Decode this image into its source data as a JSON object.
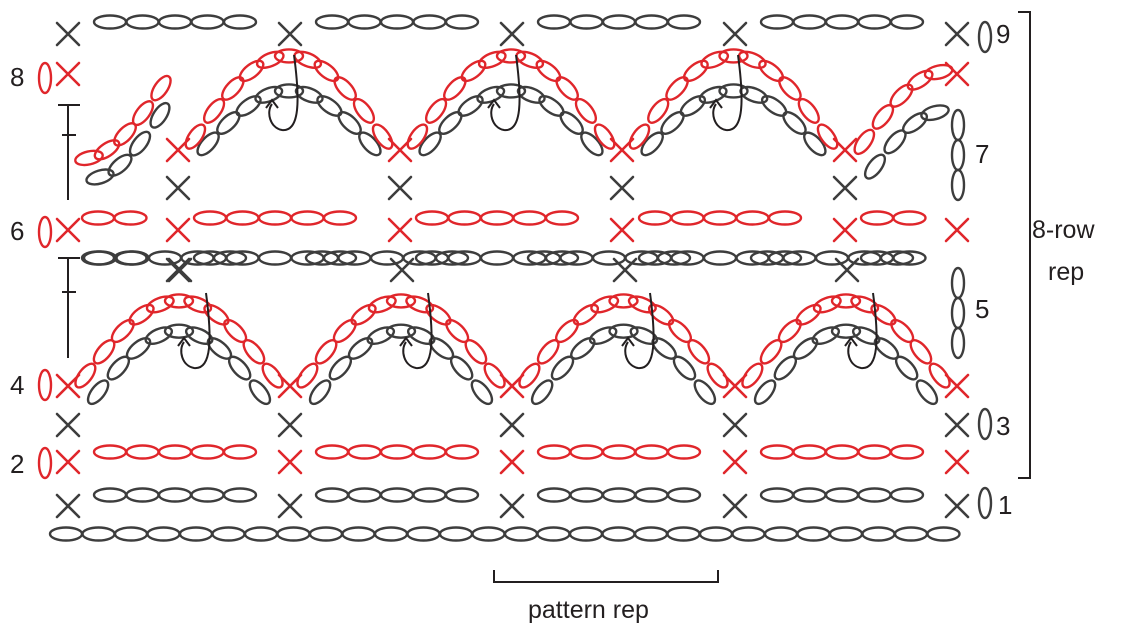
{
  "diagram": {
    "row_labels": {
      "r1": "1",
      "r2": "2",
      "r3": "3",
      "r4": "4",
      "r5": "5",
      "r6": "6",
      "r7": "7",
      "r8": "8",
      "r9": "9"
    },
    "repeat_label_line1": "8-row",
    "repeat_label_line2": "rep",
    "pattern_rep_label": "pattern rep",
    "colors": {
      "dark": "#3d3d3d",
      "red": "#e0262b",
      "text": "#231f20"
    },
    "symbols": [
      "chain",
      "single-crochet",
      "turning-chain",
      "arrow-loop"
    ]
  }
}
